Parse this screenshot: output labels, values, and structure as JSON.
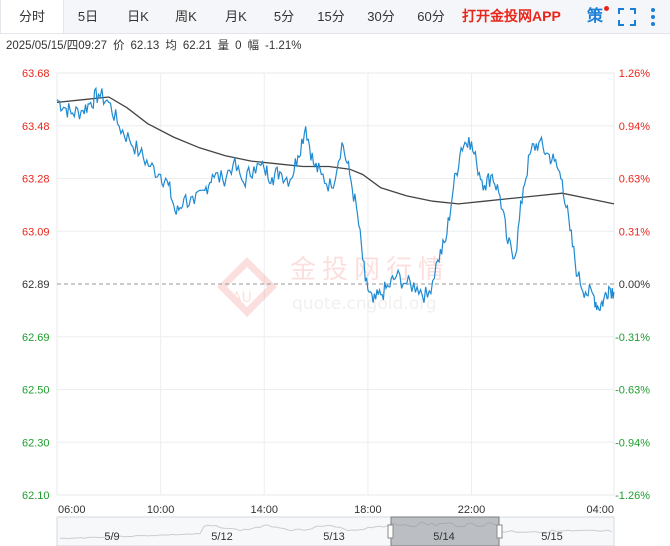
{
  "tabs": [
    {
      "label": "分时",
      "active": true
    },
    {
      "label": "5日"
    },
    {
      "label": "日K"
    },
    {
      "label": "周K"
    },
    {
      "label": "月K"
    },
    {
      "label": "5分"
    },
    {
      "label": "15分"
    },
    {
      "label": "30分"
    },
    {
      "label": "60分"
    }
  ],
  "app_link": "打开金投网APP",
  "strategy_label": "策",
  "info": {
    "datetime": "2025/05/15/四09:27",
    "price_label": "价",
    "price": "62.13",
    "avg_label": "均",
    "avg": "62.21",
    "volume_label": "量",
    "volume": "0",
    "change_label": "幅",
    "change": "-1.21%"
  },
  "watermark": {
    "brand": "金投网行情",
    "url": "quote.cngold.org",
    "badge": "AU"
  },
  "colors": {
    "price_line": "#1f8ad1",
    "avg_line": "#444444",
    "up": "#e8261b",
    "down": "#1e9e2e",
    "neutral": "#333333"
  },
  "chart_data": {
    "type": "line",
    "reference_price": 62.89,
    "ylim": [
      62.1,
      63.68
    ],
    "y_ticks": [
      "63.68",
      "63.48",
      "63.28",
      "63.09",
      "62.89",
      "62.69",
      "62.50",
      "62.30",
      "62.10"
    ],
    "pct_ticks": [
      "1.26%",
      "0.94%",
      "0.63%",
      "0.31%",
      "0.00%",
      "-0.31%",
      "-0.63%",
      "-0.94%",
      "-1.26%"
    ],
    "x_ticks": [
      "06:00",
      "10:00",
      "14:00",
      "18:00",
      "22:00",
      "04:00"
    ],
    "x_hours": [
      6,
      10,
      14,
      18,
      22,
      28
    ],
    "xlim_hours": [
      6,
      27.5
    ],
    "price_series": [
      [
        6.0,
        63.58
      ],
      [
        6.3,
        63.55
      ],
      [
        6.6,
        63.53
      ],
      [
        7.0,
        63.54
      ],
      [
        7.3,
        63.57
      ],
      [
        7.6,
        63.6
      ],
      [
        8.0,
        63.57
      ],
      [
        8.4,
        63.48
      ],
      [
        8.8,
        63.43
      ],
      [
        9.2,
        63.38
      ],
      [
        9.6,
        63.33
      ],
      [
        10.0,
        63.3
      ],
      [
        10.3,
        63.26
      ],
      [
        10.6,
        63.15
      ],
      [
        10.9,
        63.21
      ],
      [
        11.3,
        63.19
      ],
      [
        11.7,
        63.24
      ],
      [
        12.0,
        63.3
      ],
      [
        12.4,
        63.28
      ],
      [
        12.8,
        63.34
      ],
      [
        13.2,
        63.27
      ],
      [
        13.6,
        63.33
      ],
      [
        14.0,
        63.32
      ],
      [
        14.3,
        63.29
      ],
      [
        14.6,
        63.31
      ],
      [
        15.0,
        63.28
      ],
      [
        15.3,
        63.37
      ],
      [
        15.6,
        63.48
      ],
      [
        15.9,
        63.34
      ],
      [
        16.2,
        63.3
      ],
      [
        16.6,
        63.25
      ],
      [
        17.0,
        63.42
      ],
      [
        17.3,
        63.3
      ],
      [
        17.6,
        63.15
      ],
      [
        17.9,
        62.9
      ],
      [
        18.2,
        62.82
      ],
      [
        18.5,
        62.85
      ],
      [
        18.8,
        62.88
      ],
      [
        19.1,
        62.92
      ],
      [
        19.5,
        62.89
      ],
      [
        19.9,
        62.88
      ],
      [
        20.3,
        62.84
      ],
      [
        20.7,
        62.98
      ],
      [
        21.0,
        63.05
      ],
      [
        21.3,
        63.25
      ],
      [
        21.6,
        63.4
      ],
      [
        21.9,
        63.44
      ],
      [
        22.2,
        63.34
      ],
      [
        22.5,
        63.26
      ],
      [
        22.8,
        63.3
      ],
      [
        23.1,
        63.22
      ],
      [
        23.4,
        63.04
      ],
      [
        23.7,
        63.0
      ],
      [
        24.0,
        63.25
      ],
      [
        24.3,
        63.39
      ],
      [
        24.6,
        63.42
      ],
      [
        24.9,
        63.38
      ],
      [
        25.2,
        63.35
      ],
      [
        25.5,
        63.28
      ],
      [
        25.8,
        63.09
      ],
      [
        26.1,
        62.92
      ],
      [
        26.4,
        62.86
      ],
      [
        26.7,
        62.85
      ],
      [
        26.9,
        62.8
      ],
      [
        27.1,
        62.83
      ],
      [
        27.3,
        62.88
      ],
      [
        27.5,
        62.86
      ]
    ],
    "avg_series": [
      [
        6.0,
        63.57
      ],
      [
        7.0,
        63.58
      ],
      [
        8.0,
        63.59
      ],
      [
        8.7,
        63.55
      ],
      [
        9.5,
        63.49
      ],
      [
        10.5,
        63.44
      ],
      [
        11.5,
        63.4
      ],
      [
        12.5,
        63.37
      ],
      [
        13.5,
        63.35
      ],
      [
        14.5,
        63.34
      ],
      [
        15.5,
        63.33
      ],
      [
        16.5,
        63.33
      ],
      [
        17.3,
        63.32
      ],
      [
        17.8,
        63.3
      ],
      [
        18.5,
        63.25
      ],
      [
        19.5,
        63.22
      ],
      [
        20.5,
        63.2
      ],
      [
        21.5,
        63.19
      ],
      [
        22.5,
        63.2
      ],
      [
        23.5,
        63.21
      ],
      [
        24.5,
        63.22
      ],
      [
        25.5,
        63.23
      ],
      [
        26.5,
        63.21
      ],
      [
        27.5,
        63.19
      ]
    ],
    "navigator_labels": [
      "5/9",
      "5/12",
      "5/13",
      "5/14",
      "5/15"
    ]
  }
}
